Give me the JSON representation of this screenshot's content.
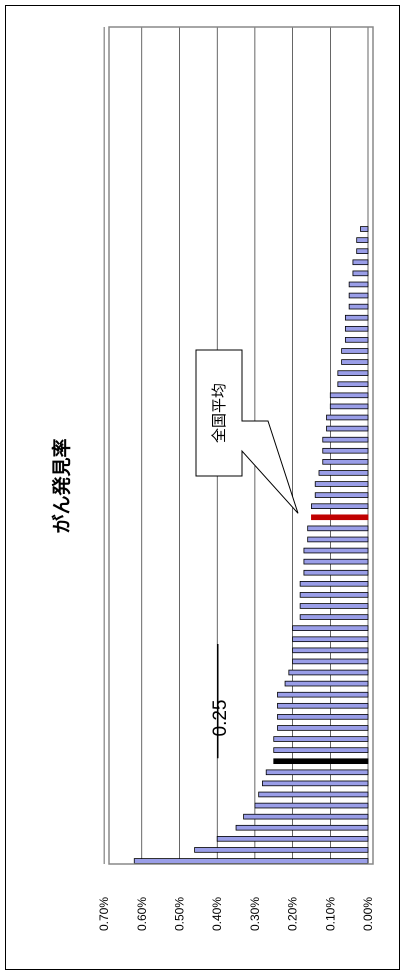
{
  "chart_data": {
    "type": "bar",
    "orientation": "rotated-90",
    "title": "がん発見率",
    "y_ticks": [
      "0.70%",
      "0.60%",
      "0.50%",
      "0.40%",
      "0.30%",
      "0.20%",
      "0.10%",
      "0.00%"
    ],
    "ylim": [
      0,
      0.7
    ],
    "grid": true,
    "values": [
      0.62,
      0.46,
      0.4,
      0.35,
      0.33,
      0.3,
      0.29,
      0.28,
      0.27,
      0.25,
      0.25,
      0.25,
      0.24,
      0.24,
      0.24,
      0.24,
      0.22,
      0.21,
      0.2,
      0.2,
      0.2,
      0.2,
      0.18,
      0.18,
      0.18,
      0.18,
      0.17,
      0.17,
      0.17,
      0.16,
      0.16,
      0.15,
      0.15,
      0.14,
      0.14,
      0.13,
      0.12,
      0.12,
      0.12,
      0.11,
      0.11,
      0.1,
      0.1,
      0.08,
      0.08,
      0.07,
      0.07,
      0.06,
      0.06,
      0.06,
      0.05,
      0.05,
      0.05,
      0.04,
      0.04,
      0.03,
      0.03,
      0.02
    ],
    "highlights": [
      {
        "index": 9,
        "label": "0.25",
        "color": "#000000"
      },
      {
        "index": 31,
        "label": "全国平均",
        "color": "#c00000"
      }
    ],
    "bar_color": "#9a9ee8"
  }
}
